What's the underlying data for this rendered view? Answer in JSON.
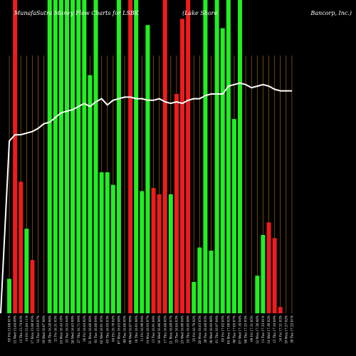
{
  "header": {
    "left": "MunafaSutra Money Flow Charts for LSBK",
    "middle": "(Lake Shore",
    "right": "Bancorp, Inc.)"
  },
  "colors": {
    "background": "#000000",
    "up": "#22ee22",
    "down": "#ee1c1c",
    "line": "#ffffff",
    "grid": "#8a5a14"
  },
  "chart_data": {
    "type": "bar",
    "title": "MunafaSutra Money Flow Charts for LSBK (Lake Shore Bancorp, Inc.)",
    "xlabel": "",
    "ylabel": "",
    "ylim": [
      0,
      100
    ],
    "grid": true,
    "categories": [
      "05 Fri Feb 2025",
      "12 Wed Mar 2025",
      "13 Thu Mar 2025",
      "14 Fri Mar 2025",
      "17 Mon Mar 2025",
      "18 Tue Mar 2025",
      "19 Wed Mar 2025",
      "20 Thu Mar 2025",
      "21 Fri Mar 2025",
      "24 Mon Mar 2025",
      "25 Tue Mar 2025",
      "26 Wed Mar 2025",
      "27 Thu Mar 2025",
      "28 Fri Mar 2025",
      "31 Mon Mar 2025",
      "01 Tue Apr 2025",
      "02 Wed Apr 2025",
      "03 Thu Apr 2025",
      "04 Fri Apr 2025",
      "07 Mon Apr 2025",
      "08 Tue Apr 2025",
      "09 Wed Apr 2025",
      "10 Thu Apr 2025",
      "11 Fri Apr 2025",
      "14 Mon Apr 2025",
      "15 Tue Apr 2025",
      "16 Wed Apr 2025",
      "17 Thu Apr 2025",
      "21 Mon Apr 2025",
      "22 Tue Apr 2025",
      "23 Wed Apr 2025",
      "24 Thu Apr 2025",
      "25 Fri Apr 2025",
      "28 Mon Apr 2025",
      "29 Tue Apr 2025",
      "30 Wed Apr 2025",
      "01 Thu May 2025",
      "02 Fri May 2025",
      "05 Mon May 2025",
      "06 Tue May 2025",
      "07 Wed May 2025",
      "08 Thu May 2025",
      "09 Fri May 2025",
      "12 Mon May 2025",
      "13 Tue May 2025",
      "14 Wed May 2025",
      "15 Thu May 2025",
      "16 Fri May 2025",
      "19 Mon May 2025",
      "20 Tue May 2025"
    ],
    "tick_labels": [
      "05 Fri 15.08 01%",
      "12 Wed 15.64 09%",
      "13 Thu 15.74 03%",
      "14 Fri 15.84 11%",
      "17 Mon 15.90 05%",
      "18 Tue 15.93 07%",
      "19 Wed 16.07 08%",
      "20 Thu 16.20 06%",
      "21 Fri 16.31 03%",
      "24 Mon 16.44 10%",
      "25 Tue 16.52 04%",
      "26 Wed 16.63 09%",
      "27 Thu 16.71 04%",
      "28 Fri 16.64 02%",
      "31 Mon 16.66 06%",
      "01 Tue 16.80 04%",
      "02 Wed 16.91 05%",
      "03 Thu 16.95 03%",
      "04 Fri 16.70 04%",
      "07 Mon 16.63 08%",
      "08 Tue 16.68 05%",
      "09 Wed 16.87 09%",
      "10 Thu 16.91 06%",
      "11 Fri 16.90 04%",
      "14 Mon 16.93 07%",
      "15 Tue 16.91 04%",
      "16 Wed 16.86 06%",
      "17 Thu 16.88 05%",
      "21 Mon 16.80 07%",
      "22 Tue 16.84 03%",
      "23 Wed 16.90 04%",
      "24 Thu 16.85 08%",
      "25 Fri 16.79 02%",
      "28 Mon 16.83 05%",
      "29 Tue 16.88 03%",
      "30 Wed 16.92 06%",
      "01 Thu 16.97 04%",
      "02 Fri 17.02 05%",
      "05 Mon 17.00 02%",
      "06 Tue 17.05 07%",
      "07 Wed 17.10 04%",
      "08 Thu 17.25 03%",
      "09 Fri 17.31 05%",
      "12 Mon 17.36 06%",
      "13 Tue 17.33 01%",
      "14 Wed 17.30 02%",
      "15 Thu 17.34 04%",
      "16 Fri 17.31 03%",
      "19 Mon 17.27 02%",
      "20 Tue 17.22 01%"
    ],
    "bars": [
      {
        "value": 11,
        "dir": "up"
      },
      {
        "value": 100,
        "dir": "down"
      },
      {
        "value": 42,
        "dir": "down"
      },
      {
        "value": 27,
        "dir": "up"
      },
      {
        "value": 17,
        "dir": "down"
      },
      {
        "value": 100,
        "dir": "up"
      },
      {
        "value": 100,
        "dir": "up"
      },
      {
        "value": 100,
        "dir": "up"
      },
      {
        "value": 100,
        "dir": "up"
      },
      {
        "value": 100,
        "dir": "up"
      },
      {
        "value": 100,
        "dir": "up"
      },
      {
        "value": 100,
        "dir": "up"
      },
      {
        "value": 76,
        "dir": "up"
      },
      {
        "value": 100,
        "dir": "up"
      },
      {
        "value": 45,
        "dir": "up"
      },
      {
        "value": 45,
        "dir": "up"
      },
      {
        "value": 41,
        "dir": "up"
      },
      {
        "value": 100,
        "dir": "up"
      },
      {
        "value": 100,
        "dir": "down"
      },
      {
        "value": 100,
        "dir": "up"
      },
      {
        "value": 39,
        "dir": "up"
      },
      {
        "value": 92,
        "dir": "up"
      },
      {
        "value": 40,
        "dir": "down"
      },
      {
        "value": 38,
        "dir": "down"
      },
      {
        "value": 100,
        "dir": "down"
      },
      {
        "value": 38,
        "dir": "up"
      },
      {
        "value": 70,
        "dir": "down"
      },
      {
        "value": 94,
        "dir": "down"
      },
      {
        "value": 100,
        "dir": "down"
      },
      {
        "value": 10,
        "dir": "up"
      },
      {
        "value": 21,
        "dir": "up"
      },
      {
        "value": 100,
        "dir": "up"
      },
      {
        "value": 20,
        "dir": "up"
      },
      {
        "value": 100,
        "dir": "up"
      },
      {
        "value": 91,
        "dir": "up"
      },
      {
        "value": 100,
        "dir": "up"
      },
      {
        "value": 62,
        "dir": "up"
      },
      {
        "value": 100,
        "dir": "up"
      },
      {
        "value": 12,
        "dir": "up"
      },
      {
        "value": 25,
        "dir": "up"
      },
      {
        "value": 29,
        "dir": "down"
      },
      {
        "value": 24,
        "dir": "down"
      },
      {
        "value": 2,
        "dir": "down"
      }
    ],
    "bar_columns": [
      0,
      1,
      2,
      3,
      4,
      7,
      8,
      9,
      10,
      11,
      12,
      13,
      14,
      15,
      16,
      17,
      18,
      19,
      21,
      22,
      23,
      24,
      25,
      26,
      27,
      28,
      29,
      30,
      31,
      32,
      33,
      34,
      35,
      36,
      37,
      38,
      39,
      40,
      43,
      44,
      45,
      46,
      47
    ],
    "line": {
      "name": "Price",
      "ylim": [
        0,
        100
      ],
      "values": [
        55,
        57,
        57,
        57.5,
        58,
        59,
        60.5,
        61,
        62.5,
        64,
        64.5,
        65,
        66,
        67,
        66,
        67.5,
        68.5,
        66.5,
        68,
        68.5,
        69,
        69,
        68.5,
        68.5,
        68,
        68,
        68.5,
        67.5,
        67,
        67.5,
        67,
        68,
        68.5,
        68.5,
        69.5,
        70,
        70,
        70,
        72.5,
        73,
        73.5,
        73,
        72,
        72.5,
        73,
        72.5,
        71.5,
        71,
        71,
        71
      ]
    }
  }
}
